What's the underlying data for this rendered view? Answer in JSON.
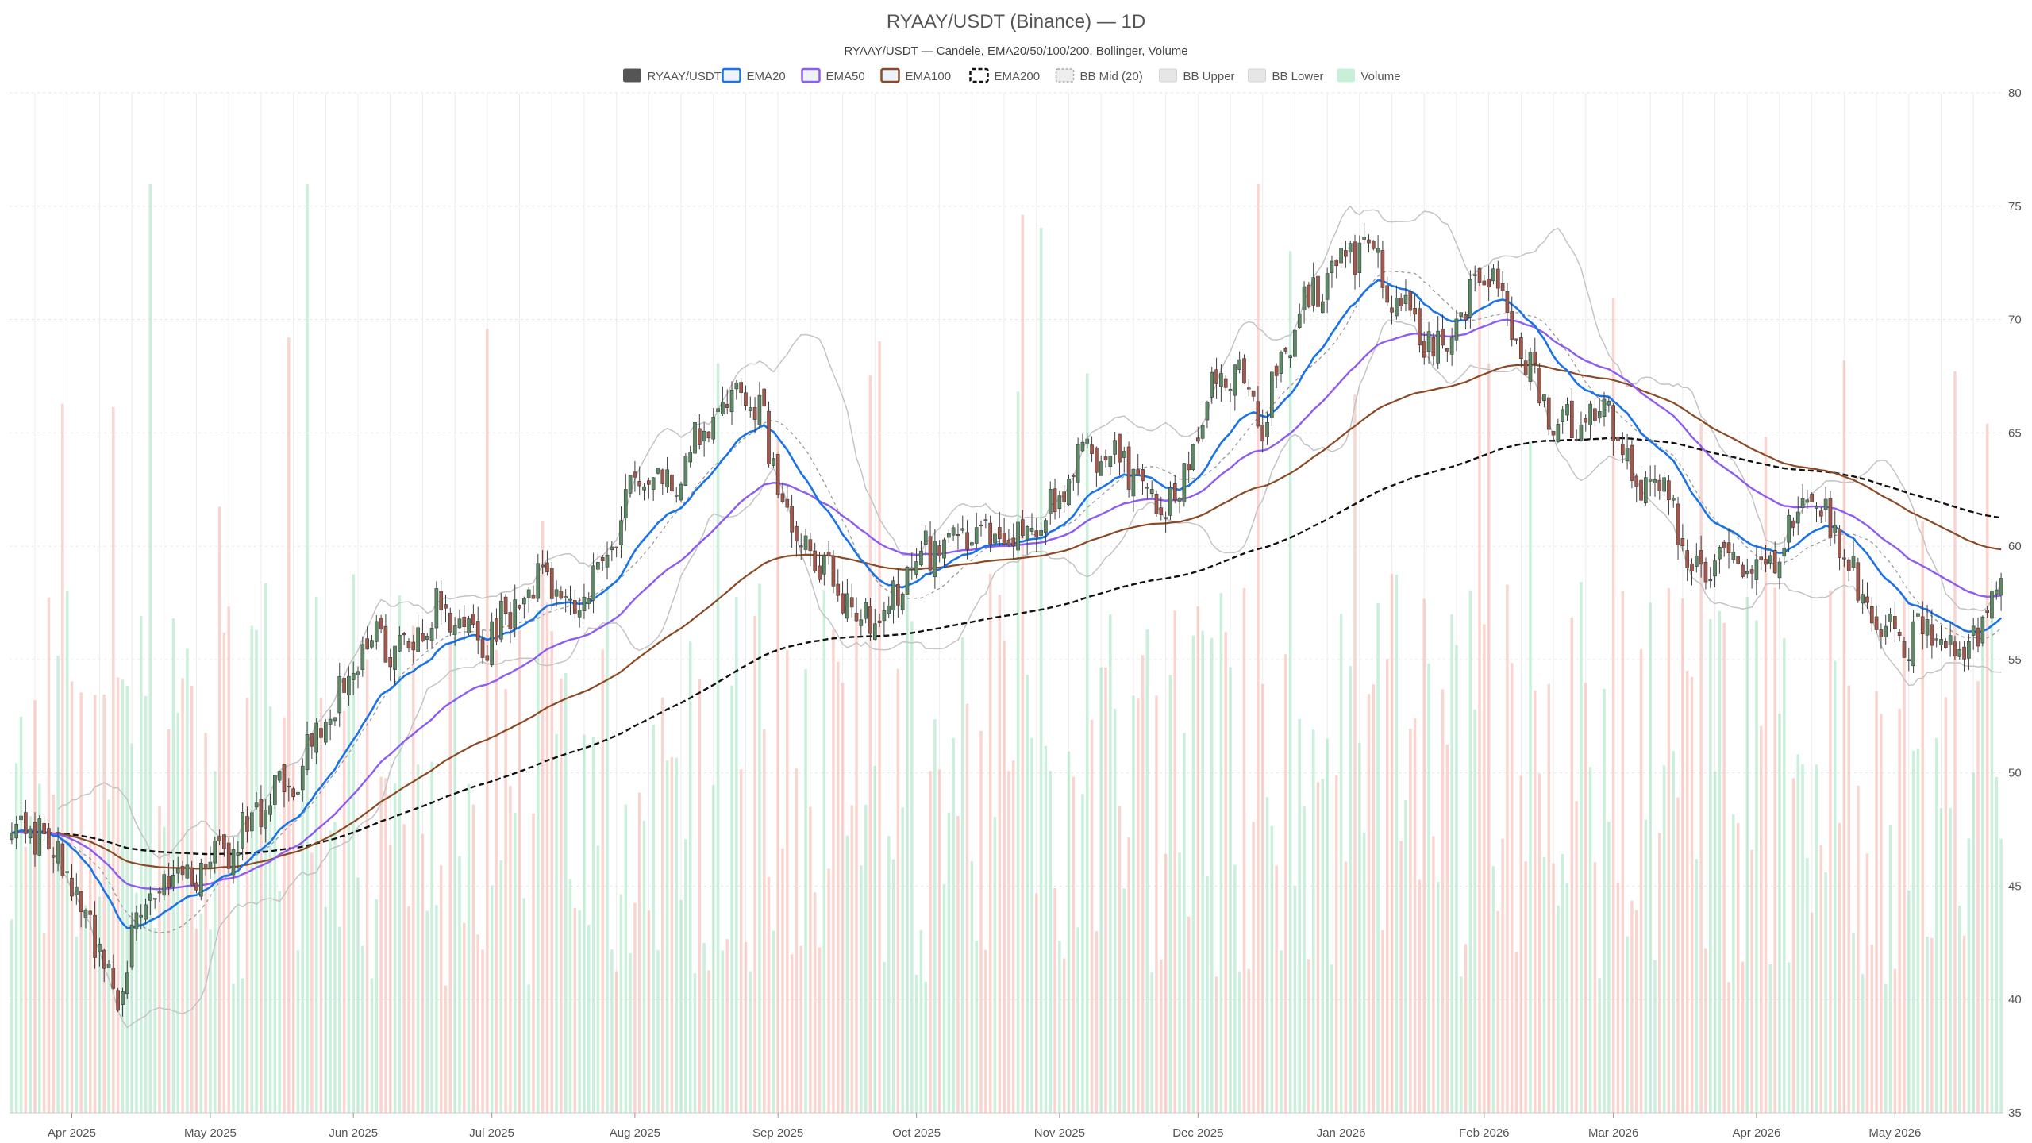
{
  "title": "RYAAY/USDT (Binance) — 1D",
  "subtitle": "RYAAY/USDT — Candele, EMA20/50/100/200, Bollinger, Volume",
  "legend": [
    {
      "label": "RYAAY/USDT",
      "color": "#555555",
      "swatch": "filled"
    },
    {
      "label": "EMA20",
      "color": "#1a73e8",
      "swatch": "outline"
    },
    {
      "label": "EMA50",
      "color": "#8e5cf0",
      "swatch": "outline"
    },
    {
      "label": "EMA100",
      "color": "#8b4a25",
      "swatch": "outline"
    },
    {
      "label": "EMA200",
      "color": "#111111",
      "swatch": "dashed"
    },
    {
      "label": "BB Mid (20)",
      "color": "#aaaaaa",
      "swatch": "dotted"
    },
    {
      "label": "BB Upper",
      "color": "#bbbbbb",
      "swatch": "light"
    },
    {
      "label": "BB Lower",
      "color": "#bbbbbb",
      "swatch": "light"
    },
    {
      "label": "Volume",
      "color": "#a8e6c4",
      "swatch": "light"
    }
  ],
  "chart_data": {
    "type": "candlestick",
    "title": "RYAAY/USDT (Binance) — 1D",
    "subtitle": "RYAAY/USDT — Candele, EMA20/50/100/200, Bollinger, Volume",
    "start_date": "2025-03-19",
    "end_date": "2026-05-24",
    "y_axis": {
      "position": "right",
      "min": 35,
      "max": 80,
      "ticks": [
        35,
        40,
        45,
        50,
        55,
        60,
        65,
        70,
        75,
        80
      ]
    },
    "x_ticks": [
      {
        "label": "Apr 2025",
        "date": "2025-04-01"
      },
      {
        "label": "May 2025",
        "date": "2025-05-01"
      },
      {
        "label": "Jun 2025",
        "date": "2025-06-01"
      },
      {
        "label": "Jul 2025",
        "date": "2025-07-01"
      },
      {
        "label": "Aug 2025",
        "date": "2025-08-01"
      },
      {
        "label": "Sep 2025",
        "date": "2025-09-01"
      },
      {
        "label": "Oct 2025",
        "date": "2025-10-01"
      },
      {
        "label": "Nov 2025",
        "date": "2025-11-01"
      },
      {
        "label": "Dec 2025",
        "date": "2025-12-01"
      },
      {
        "label": "Jan 2026",
        "date": "2026-01-01"
      },
      {
        "label": "Feb 2026",
        "date": "2026-02-01"
      },
      {
        "label": "Mar 2026",
        "date": "2026-03-01"
      },
      {
        "label": "Apr 2026",
        "date": "2026-04-01"
      },
      {
        "label": "May 2026",
        "date": "2026-05-01"
      }
    ],
    "price_path": [
      [
        "2025-03-19",
        47.2
      ],
      [
        "2025-03-25",
        47.5
      ],
      [
        "2025-04-01",
        45.5
      ],
      [
        "2025-04-07",
        42.0
      ],
      [
        "2025-04-11",
        39.5
      ],
      [
        "2025-04-15",
        44.0
      ],
      [
        "2025-04-22",
        45.5
      ],
      [
        "2025-05-01",
        46.0
      ],
      [
        "2025-05-06",
        46.5
      ],
      [
        "2025-05-12",
        48.5
      ],
      [
        "2025-05-20",
        50.0
      ],
      [
        "2025-05-28",
        53.0
      ],
      [
        "2025-06-05",
        56.0
      ],
      [
        "2025-06-12",
        55.5
      ],
      [
        "2025-06-20",
        57.5
      ],
      [
        "2025-06-27",
        55.5
      ],
      [
        "2025-07-05",
        57.0
      ],
      [
        "2025-07-12",
        58.5
      ],
      [
        "2025-07-20",
        57.5
      ],
      [
        "2025-07-25",
        59.5
      ],
      [
        "2025-08-01",
        62.5
      ],
      [
        "2025-08-10",
        63.0
      ],
      [
        "2025-08-17",
        65.5
      ],
      [
        "2025-08-22",
        66.5
      ],
      [
        "2025-08-28",
        66.0
      ],
      [
        "2025-09-01",
        62.5
      ],
      [
        "2025-09-05",
        60.5
      ],
      [
        "2025-09-12",
        58.5
      ],
      [
        "2025-09-18",
        57.0
      ],
      [
        "2025-09-25",
        57.5
      ],
      [
        "2025-10-01",
        59.5
      ],
      [
        "2025-10-10",
        60.0
      ],
      [
        "2025-10-20",
        60.5
      ],
      [
        "2025-10-28",
        61.0
      ],
      [
        "2025-11-05",
        63.5
      ],
      [
        "2025-11-12",
        64.5
      ],
      [
        "2025-11-20",
        62.0
      ],
      [
        "2025-11-27",
        62.5
      ],
      [
        "2025-12-03",
        66.5
      ],
      [
        "2025-12-10",
        67.5
      ],
      [
        "2025-12-15",
        65.5
      ],
      [
        "2025-12-22",
        70.0
      ],
      [
        "2026-01-01",
        72.5
      ],
      [
        "2026-01-07",
        73.5
      ],
      [
        "2026-01-14",
        70.5
      ],
      [
        "2026-01-22",
        68.5
      ],
      [
        "2026-01-28",
        70.5
      ],
      [
        "2026-02-03",
        72.0
      ],
      [
        "2026-02-10",
        68.0
      ],
      [
        "2026-02-15",
        66.0
      ],
      [
        "2026-02-22",
        65.0
      ],
      [
        "2026-02-28",
        66.5
      ],
      [
        "2026-03-05",
        62.5
      ],
      [
        "2026-03-12",
        63.0
      ],
      [
        "2026-03-18",
        58.5
      ],
      [
        "2026-03-25",
        59.5
      ],
      [
        "2026-04-01",
        58.5
      ],
      [
        "2026-04-06",
        60.0
      ],
      [
        "2026-04-12",
        62.5
      ],
      [
        "2026-04-18",
        60.5
      ],
      [
        "2026-04-25",
        57.0
      ],
      [
        "2026-05-02",
        55.5
      ],
      [
        "2026-05-08",
        56.5
      ],
      [
        "2026-05-14",
        55.0
      ],
      [
        "2026-05-20",
        56.5
      ],
      [
        "2026-05-24",
        59.0
      ]
    ]
  }
}
